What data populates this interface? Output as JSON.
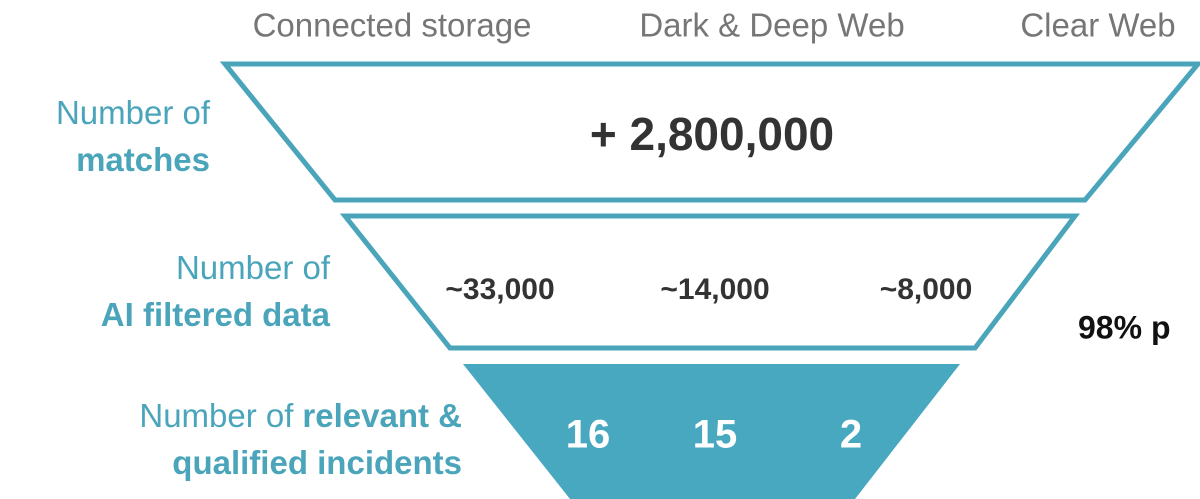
{
  "columns": [
    "Connected storage",
    "Dark & Deep Web",
    "Clear Web"
  ],
  "rows": [
    {
      "label_lines": [
        [
          {
            "text": "Number of",
            "bold": false
          }
        ],
        [
          {
            "text": "matches",
            "bold": true
          }
        ]
      ],
      "values": [
        "+ 2,800,000"
      ]
    },
    {
      "label_lines": [
        [
          {
            "text": "Number of",
            "bold": false
          }
        ],
        [
          {
            "text": "AI filtered data",
            "bold": true
          }
        ]
      ],
      "values": [
        "~33,000",
        "~14,000",
        "~8,000"
      ]
    },
    {
      "label_lines": [
        [
          {
            "text": "Number of",
            "bold": false
          },
          {
            "text": "relevant &",
            "bold": true
          }
        ],
        [
          {
            "text": "qualified incidents",
            "bold": true
          }
        ]
      ],
      "values": [
        "16",
        "15",
        "2"
      ]
    }
  ],
  "side_note": "98% p"
}
